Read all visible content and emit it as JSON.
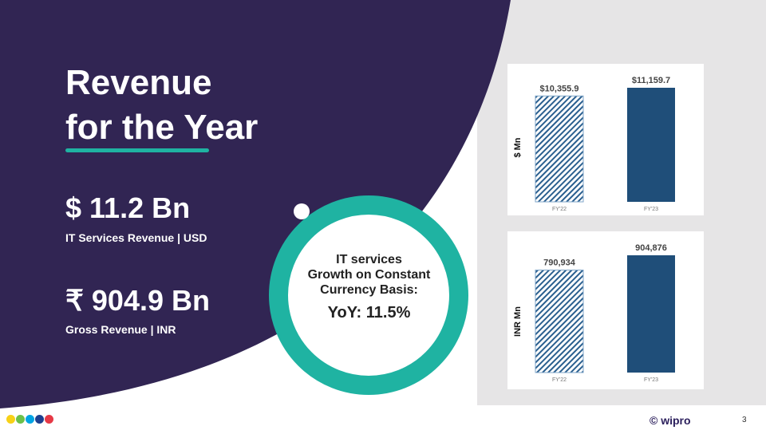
{
  "title_line1": "Revenue",
  "title_line2": "for the Year",
  "usd_metric": {
    "value": "$ 11.2 Bn",
    "label": "IT Services Revenue | USD"
  },
  "inr_metric": {
    "value": "₹ 904.9 Bn",
    "label": "Gross Revenue | INR"
  },
  "ring": {
    "line1": "IT services",
    "line2": "Growth on Constant",
    "line3": "Currency Basis:",
    "yoy": "YoY: 11.5%"
  },
  "footer": {
    "logo": "© wipro",
    "page": "3",
    "dot_colors": [
      "#f7d117",
      "#6cc04a",
      "#00a4e4",
      "#1e3f8f",
      "#e63946"
    ]
  },
  "colors": {
    "purple": "#312553",
    "teal": "#1fb3a2",
    "bar": "#1f4e79",
    "panel": "#e6e5e6"
  },
  "chart_data": [
    {
      "type": "bar",
      "ylabel": "$ Mn",
      "categories": [
        "FY'22",
        "FY'23"
      ],
      "values": [
        10355.9,
        11159.7
      ],
      "labels": [
        "$10,355.9",
        "$11,159.7"
      ],
      "ylim": [
        0,
        11500
      ]
    },
    {
      "type": "bar",
      "ylabel": "INR Mn",
      "categories": [
        "FY'22",
        "FY'23"
      ],
      "values": [
        790934,
        904876
      ],
      "labels": [
        "790,934",
        "904,876"
      ],
      "ylim": [
        0,
        1000000
      ]
    }
  ]
}
